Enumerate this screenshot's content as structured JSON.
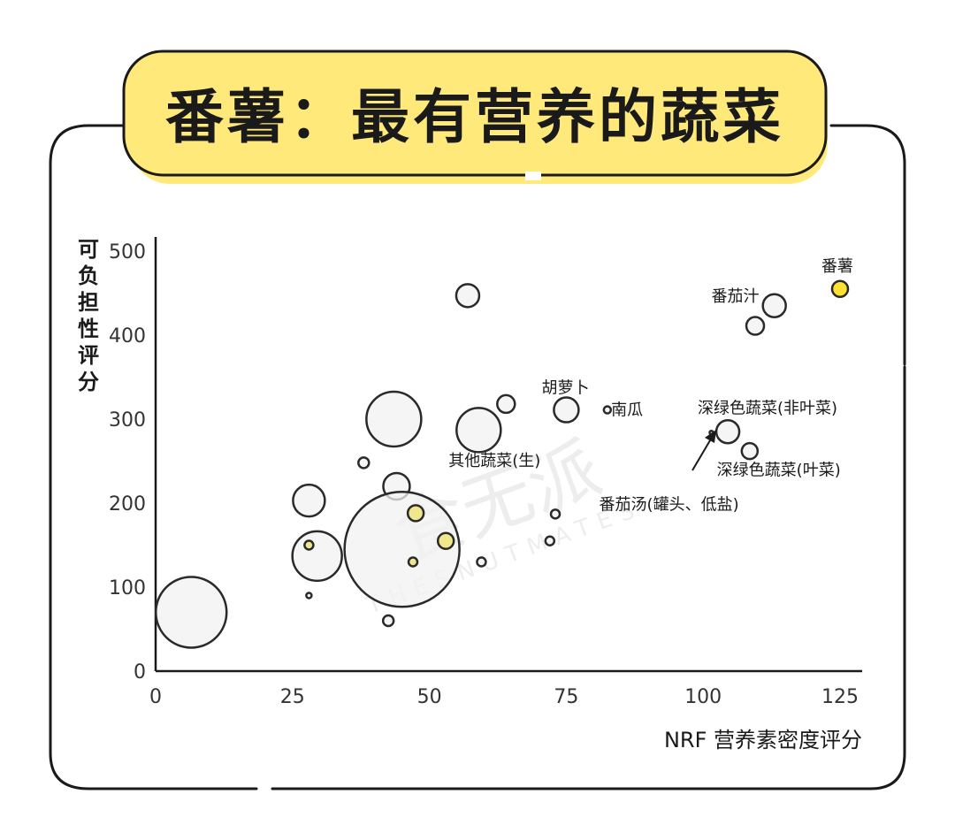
{
  "chart_data": {
    "type": "scatter",
    "title": "番薯：最有营养的蔬菜",
    "xlabel": "NRF 营养素密度评分",
    "ylabel": "可负担性评分",
    "xlim": [
      0,
      128
    ],
    "ylim": [
      0,
      500
    ],
    "xticks": [
      "0",
      "25",
      "50",
      "75",
      "100",
      "125"
    ],
    "yticks": [
      "0",
      "100",
      "200",
      "300",
      "400",
      "500"
    ],
    "grid": false,
    "points": [
      {
        "x": 6.5,
        "y": 70,
        "r": 40,
        "color": "#f2f2f2"
      },
      {
        "x": 28,
        "y": 203,
        "r": 18,
        "color": "#f2f2f2"
      },
      {
        "x": 29.5,
        "y": 137,
        "r": 28,
        "color": "#f2f2f2"
      },
      {
        "x": 28,
        "y": 150,
        "r": 5,
        "color": "#f0e68c"
      },
      {
        "x": 28,
        "y": 90,
        "r": 3,
        "color": "#f2f2f2"
      },
      {
        "x": 38,
        "y": 248,
        "r": 6,
        "color": "#f2f2f2"
      },
      {
        "x": 43.5,
        "y": 300,
        "r": 31,
        "color": "#f2f2f2"
      },
      {
        "x": 44,
        "y": 220,
        "r": 15,
        "color": "#f2f2f2"
      },
      {
        "x": 45,
        "y": 145,
        "r": 65,
        "color": "#f2f2f2"
      },
      {
        "x": 47.5,
        "y": 188,
        "r": 9,
        "color": "#f0e68c"
      },
      {
        "x": 47,
        "y": 130,
        "r": 5,
        "color": "#f0e68c"
      },
      {
        "x": 42.5,
        "y": 60,
        "r": 6,
        "color": "#f2f2f2"
      },
      {
        "x": 53,
        "y": 155,
        "r": 9,
        "color": "#f0e68c"
      },
      {
        "x": 57,
        "y": 447,
        "r": 13,
        "color": "#f2f2f2"
      },
      {
        "x": 59,
        "y": 287,
        "r": 25,
        "color": "#f2f2f2"
      },
      {
        "x": 59.5,
        "y": 130,
        "r": 5,
        "color": "#f2f2f2"
      },
      {
        "x": 64,
        "y": 318,
        "r": 10,
        "color": "#f2f2f2"
      },
      {
        "x": 72,
        "y": 155,
        "r": 5,
        "color": "#f2f2f2"
      },
      {
        "x": 73,
        "y": 187,
        "r": 5,
        "color": "#f2f2f2"
      },
      {
        "x": 75,
        "y": 311,
        "r": 14,
        "color": "#f2f2f2"
      },
      {
        "x": 82.5,
        "y": 311,
        "r": 4,
        "color": "#f2f2f2"
      },
      {
        "x": 101.5,
        "y": 284,
        "r": 2,
        "color": "#f2f2f2"
      },
      {
        "x": 104.5,
        "y": 285,
        "r": 13,
        "color": "#f2f2f2"
      },
      {
        "x": 108.5,
        "y": 262,
        "r": 9,
        "color": "#f2f2f2"
      },
      {
        "x": 109.5,
        "y": 411,
        "r": 10,
        "color": "#f2f2f2"
      },
      {
        "x": 113,
        "y": 435,
        "r": 13,
        "color": "#f2f2f2"
      },
      {
        "x": 125,
        "y": 455,
        "r": 9,
        "color": "#ffe033"
      }
    ],
    "labels": [
      {
        "text": "番薯",
        "x": 124.5,
        "y": 476,
        "anchor": "middle"
      },
      {
        "text": "番茄汁",
        "x": 101.5,
        "y": 440,
        "anchor": "start"
      },
      {
        "text": "胡萝卜",
        "x": 70.5,
        "y": 331,
        "anchor": "start"
      },
      {
        "text": "南瓜",
        "x": 83.2,
        "y": 305,
        "anchor": "start"
      },
      {
        "text": "深绿色蔬菜(非叶菜)",
        "x": 99,
        "y": 307,
        "anchor": "start"
      },
      {
        "text": "其他蔬菜(生)",
        "x": 53.5,
        "y": 244,
        "anchor": "start"
      },
      {
        "text": "深绿色蔬菜(叶菜)",
        "x": 102.5,
        "y": 233,
        "anchor": "start"
      },
      {
        "text": "番茄汤(罐头、低盐)",
        "x": 81,
        "y": 192,
        "anchor": "start"
      }
    ],
    "watermark": "食无派",
    "watermark_sub": "THESNUTMATES"
  }
}
